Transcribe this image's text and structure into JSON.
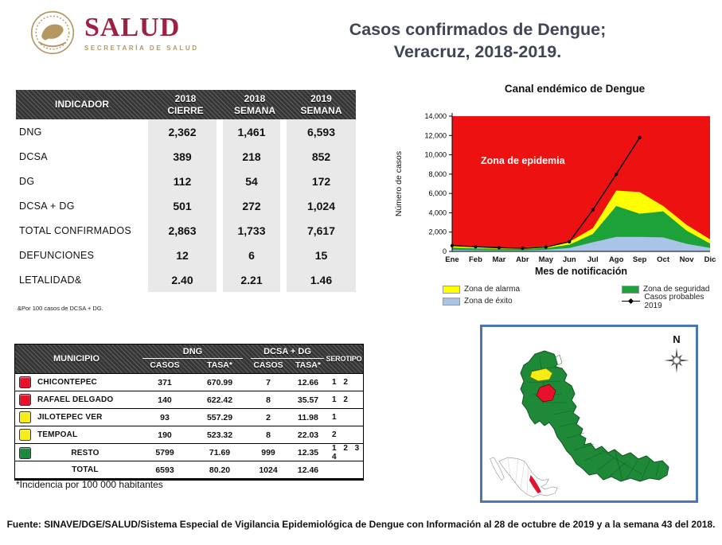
{
  "header": {
    "brand": {
      "wordmark": "SALUD",
      "tagline": "SECRETARÍA DE SALUD",
      "wordmark_color": "#9D2241",
      "gold_color": "#B59763"
    },
    "title_line1": "Casos confirmados de Dengue;",
    "title_line2": "Veracruz, 2018-2019."
  },
  "indicator_table": {
    "columns": [
      "INDICADOR",
      "2018\nCIERRE",
      "2018\nSEMANA",
      "2019\nSEMANA"
    ],
    "rows": [
      {
        "label": "DNG",
        "values": [
          "2,362",
          "1,461",
          "6,593"
        ]
      },
      {
        "label": "DCSA",
        "values": [
          "389",
          "218",
          "852"
        ]
      },
      {
        "label": "DG",
        "values": [
          "112",
          "54",
          "172"
        ]
      },
      {
        "label": "DCSA + DG",
        "values": [
          "501",
          "272",
          "1,024"
        ]
      },
      {
        "label": "TOTAL CONFIRMADOS",
        "values": [
          "2,863",
          "1,733",
          "7,617"
        ]
      },
      {
        "label": "DEFUNCIONES",
        "values": [
          "12",
          "6",
          "15"
        ]
      },
      {
        "label": "LETALIDAD&",
        "values": [
          "2.40",
          "2.21",
          "1.46"
        ]
      }
    ],
    "footnote": "&Por 100 casos de DCSA + DG."
  },
  "chart_data": {
    "type": "area",
    "title": "Canal endémico de Dengue",
    "xlabel": "Mes de notificación",
    "ylabel": "Número de casos",
    "ylim": [
      0,
      14000
    ],
    "ytick_step": 2000,
    "grid": false,
    "legend_position": "bottom",
    "categories": [
      "Ene",
      "Feb",
      "Mar",
      "Abr",
      "May",
      "Jun",
      "Jul",
      "Ago",
      "Sep",
      "Oct",
      "Nov",
      "Dic"
    ],
    "background_zone": {
      "name": "Zona de epidemia",
      "color": "#ED1111",
      "text_color": "#FFFFFF"
    },
    "series": [
      {
        "name": "Zona de alarma",
        "type": "area",
        "color": "#FFFF00",
        "values": [
          650,
          520,
          420,
          400,
          520,
          1000,
          2400,
          6300,
          6150,
          4700,
          2750,
          1250
        ]
      },
      {
        "name": "Zona de seguridad",
        "type": "area",
        "color": "#1DA23A",
        "values": [
          400,
          320,
          270,
          260,
          340,
          700,
          1800,
          4700,
          3900,
          4150,
          2150,
          820
        ]
      },
      {
        "name": "Zona de éxito",
        "type": "area",
        "color": "#A9C4E6",
        "values": [
          160,
          130,
          110,
          110,
          160,
          350,
          950,
          1500,
          1500,
          1450,
          780,
          360
        ]
      },
      {
        "name": "Casos probables 2019",
        "type": "line",
        "color": "#000000",
        "values": [
          600,
          480,
          380,
          330,
          450,
          1000,
          4300,
          8000,
          11800
        ]
      }
    ],
    "legend": [
      {
        "label": "Zona de alarma",
        "marker": "swatch",
        "color": "#FFFF00"
      },
      {
        "label": "Zona de seguridad",
        "marker": "swatch",
        "color": "#1DA23A"
      },
      {
        "label": "Zona de éxito",
        "marker": "swatch",
        "color": "#A9C4E6"
      },
      {
        "label": "Casos probables 2019",
        "marker": "line",
        "color": "#000000"
      }
    ]
  },
  "municipio_table": {
    "header": {
      "municipio": "MUNICIPIO",
      "dng_group": "DNG",
      "dcsa_group": "DCSA + DG",
      "casos": "CASOS",
      "tasa": "TASA*",
      "serotipo": "SEROTIPO"
    },
    "rows": [
      {
        "color": "#E8112D",
        "name": "CHICONTEPEC",
        "dng_casos": "371",
        "dng_tasa": "670.99",
        "dcsa_casos": "7",
        "dcsa_tasa": "12.66",
        "serotipo": "1 2"
      },
      {
        "color": "#E8112D",
        "name": "RAFAEL DELGADO",
        "dng_casos": "140",
        "dng_tasa": "622.42",
        "dcsa_casos": "8",
        "dcsa_tasa": "35.57",
        "serotipo": "1 2"
      },
      {
        "color": "#F7EC13",
        "name": "JILOTEPEC VER",
        "dng_casos": "93",
        "dng_tasa": "557.29",
        "dcsa_casos": "2",
        "dcsa_tasa": "11.98",
        "serotipo": "1"
      },
      {
        "color": "#F7EC13",
        "name": "TEMPOAL",
        "dng_casos": "190",
        "dng_tasa": "523.32",
        "dcsa_casos": "8",
        "dcsa_tasa": "22.03",
        "serotipo": "2"
      },
      {
        "color": "#168A3E",
        "name": "RESTO",
        "dng_casos": "5799",
        "dng_tasa": "71.69",
        "dcsa_casos": "999",
        "dcsa_tasa": "12.35",
        "serotipo": "1 2 3 4"
      },
      {
        "color": "",
        "name": "TOTAL",
        "dng_casos": "6593",
        "dng_tasa": "80.20",
        "dcsa_casos": "1024",
        "dcsa_tasa": "12.46",
        "serotipo": ""
      }
    ],
    "footnote": "*Incidencia por 100 000 habitantes"
  },
  "map": {
    "north_label": "N",
    "state_fill": "#1E8A38",
    "state_border": "#0E5420",
    "highlight_yellow": "#F7EC13",
    "highlight_red": "#E8112D",
    "frame_color": "#4A77B4"
  },
  "footer": {
    "text": "Fuente: SINAVE/DGE/SALUD/Sistema Especial de Vigilancia Epidemiológica de Dengue con Información al 28 de octubre de 2019 y a la semana 43 del 2018."
  }
}
